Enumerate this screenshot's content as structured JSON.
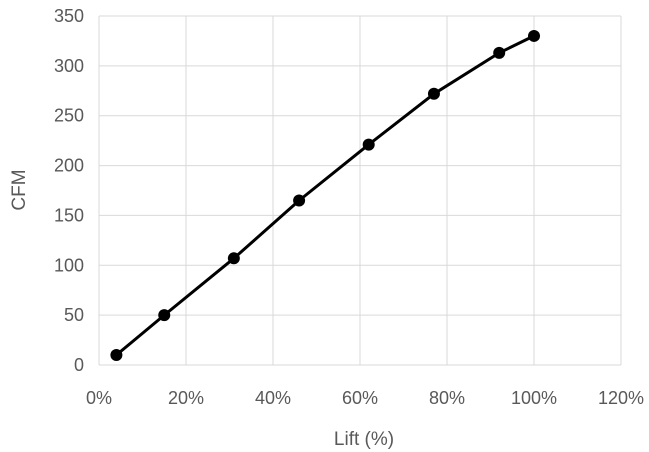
{
  "chart_data": {
    "type": "line",
    "xlabel": "Lift (%)",
    "ylabel": "CFM",
    "xlim": [
      0,
      120
    ],
    "ylim": [
      0,
      350
    ],
    "x_ticks": [
      "0%",
      "20%",
      "40%",
      "60%",
      "80%",
      "100%",
      "120%"
    ],
    "y_ticks": [
      "0",
      "50",
      "100",
      "150",
      "200",
      "250",
      "300",
      "350"
    ],
    "grid": true,
    "series": [
      {
        "x": [
          4,
          15,
          31,
          46,
          62,
          77,
          92,
          100
        ],
        "y": [
          10,
          50,
          107,
          165,
          221,
          272,
          313,
          330
        ],
        "color": "#000000",
        "marker": "circle"
      }
    ]
  }
}
